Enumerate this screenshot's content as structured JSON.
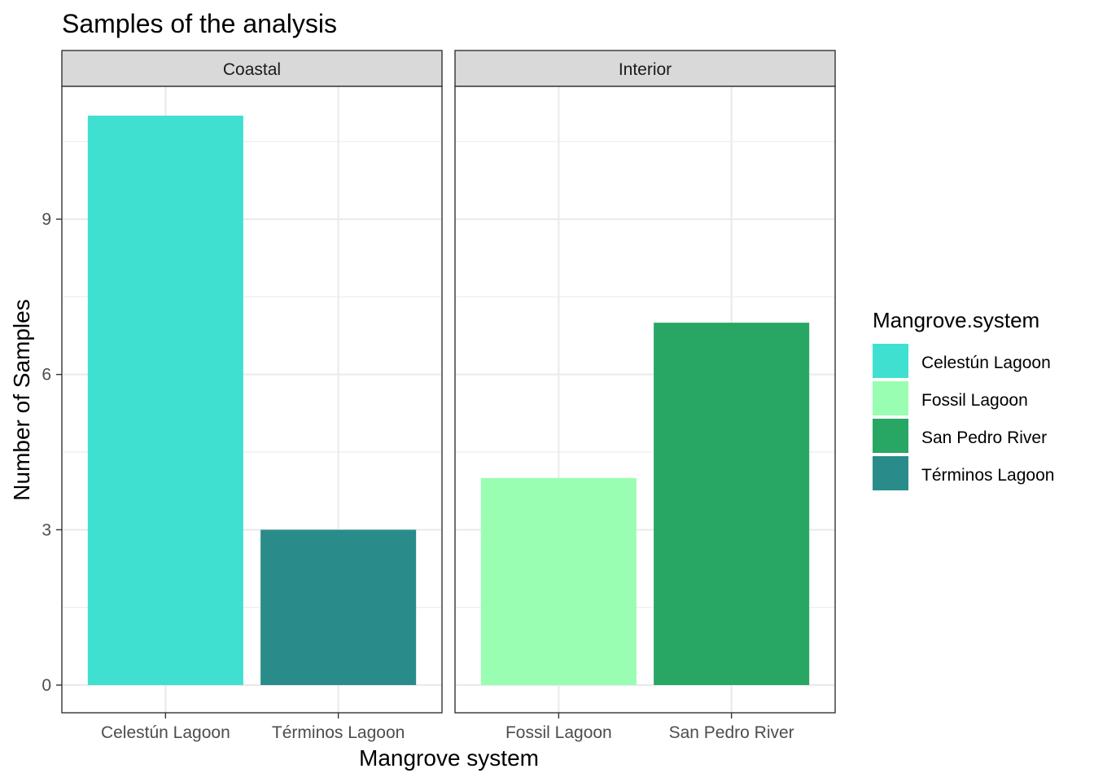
{
  "chart_data": {
    "type": "bar",
    "title": "Samples of the analysis",
    "xlabel": "Mangrove system",
    "ylabel": "Number of Samples",
    "ylim": [
      -1.5,
      12.11
    ],
    "yticks": [
      0,
      3,
      6,
      9
    ],
    "grid": true,
    "facets": [
      {
        "label": "Coastal",
        "categories": [
          "Celestún Lagoon",
          "Términos Lagoon"
        ],
        "values": [
          11,
          3
        ]
      },
      {
        "label": "Interior",
        "categories": [
          "Fossil Lagoon",
          "San Pedro River"
        ],
        "values": [
          4,
          7
        ]
      }
    ],
    "legend": {
      "title": "Mangrove.system",
      "position": "right",
      "items": [
        {
          "label": "Celestún Lagoon",
          "color": "#40E0D0"
        },
        {
          "label": "Fossil Lagoon",
          "color": "#9AFEB2"
        },
        {
          "label": "San Pedro River",
          "color": "#28A764"
        },
        {
          "label": "Términos Lagoon",
          "color": "#2A8C8A"
        }
      ]
    }
  }
}
